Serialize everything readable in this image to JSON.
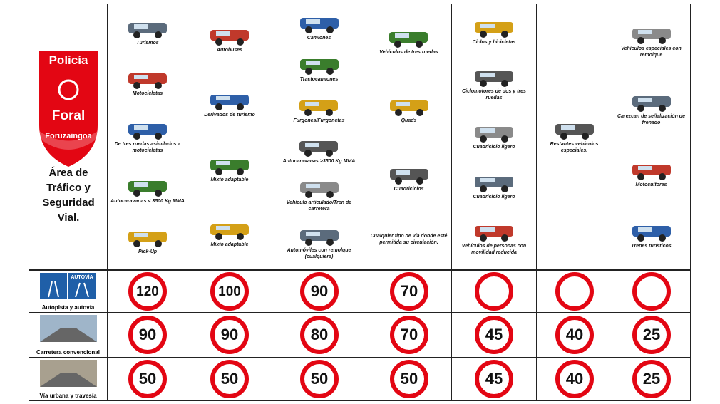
{
  "logo": {
    "lines": [
      "Policía",
      "Foral"
    ],
    "band": "Foruzaingoa"
  },
  "area": "Área de Tráfico y Seguridad Vial.",
  "autovia_sign": "AUTOVÍA",
  "columns": [
    {
      "vehicles": [
        "Turismos",
        "Motocicletas",
        "De tres ruedas asimilados a motocicletas",
        "Autocaravanas < 3500 Kg MMA",
        "Pick-Up"
      ]
    },
    {
      "vehicles": [
        "Autobuses",
        "Derivados de turismo",
        "Mixto adaptable",
        "Mixto adaptable"
      ]
    },
    {
      "vehicles": [
        "Camiones",
        "Tractocamiones",
        "Furgones/Furgonetas",
        "Autocaravanas >3500 Kg MMA",
        "Vehículo articulado/Tren de carretera",
        "Automóviles con remolque (cualquiera)"
      ]
    },
    {
      "vehicles": [
        "Vehículos de tres ruedas",
        "Quads",
        "Cuadriciclos"
      ],
      "note": "Cualquier tipo de vía donde esté permitida su circulación."
    },
    {
      "vehicles": [
        "Ciclos y bicicletas",
        "Ciclomotores de dos y tres ruedas",
        "Cuadriciclo ligero",
        "Cuadriciclo ligero",
        "Vehículos de personas con movilidad reducida"
      ]
    },
    {
      "vehicles": [
        "Restantes vehículos especiales."
      ]
    },
    {
      "vehicles": [
        "Vehículos especiales con remolque",
        "Carezcan de señalización de frenado",
        "Motocultores",
        "Trenes turísticos"
      ]
    }
  ],
  "rows": [
    {
      "label": "Autopista y autovía",
      "limits": [
        120,
        100,
        90,
        70,
        null,
        null,
        null
      ]
    },
    {
      "label": "Carretera convencional",
      "limits": [
        90,
        90,
        80,
        70,
        45,
        40,
        25
      ]
    },
    {
      "label": "Vía urbana y travesía",
      "limits": [
        50,
        50,
        50,
        50,
        45,
        40,
        25
      ]
    }
  ]
}
